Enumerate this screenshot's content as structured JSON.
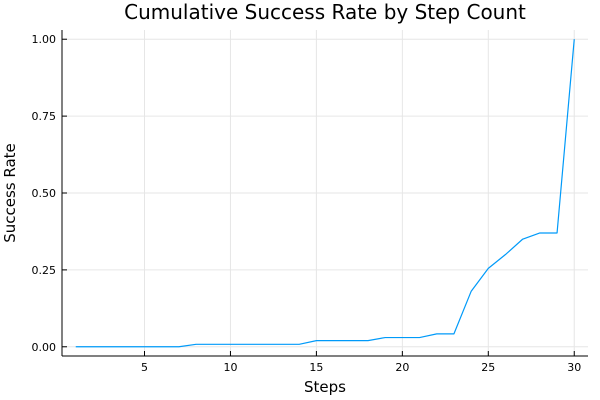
{
  "chart_data": {
    "type": "line",
    "title": "Cumulative Success Rate by Step Count",
    "xlabel": "Steps",
    "ylabel": "Success Rate",
    "xlim": [
      0.2,
      30.8
    ],
    "ylim": [
      -0.03,
      1.03
    ],
    "xticks": [
      5,
      10,
      15,
      20,
      25,
      30
    ],
    "xtick_labels": [
      "5",
      "10",
      "15",
      "20",
      "25",
      "30"
    ],
    "yticks": [
      0,
      0.25,
      0.5,
      0.75,
      1.0
    ],
    "ytick_labels": [
      "0.00",
      "0.25",
      "0.50",
      "0.75",
      "1.00"
    ],
    "grid": true,
    "legend": "none",
    "series": [
      {
        "color": "#009af9",
        "x": [
          1,
          2,
          3,
          4,
          5,
          6,
          7,
          8,
          9,
          10,
          11,
          12,
          13,
          14,
          15,
          16,
          17,
          18,
          19,
          20,
          21,
          22,
          23,
          24,
          25,
          26,
          27,
          28,
          29,
          30
        ],
        "y": [
          0.0,
          0.0,
          0.0,
          0.0,
          0.0,
          0.0,
          0.0,
          0.008,
          0.008,
          0.008,
          0.008,
          0.008,
          0.008,
          0.008,
          0.02,
          0.02,
          0.02,
          0.02,
          0.03,
          0.03,
          0.03,
          0.042,
          0.042,
          0.18,
          0.255,
          0.3,
          0.35,
          0.37,
          0.37,
          1.0
        ]
      }
    ]
  }
}
